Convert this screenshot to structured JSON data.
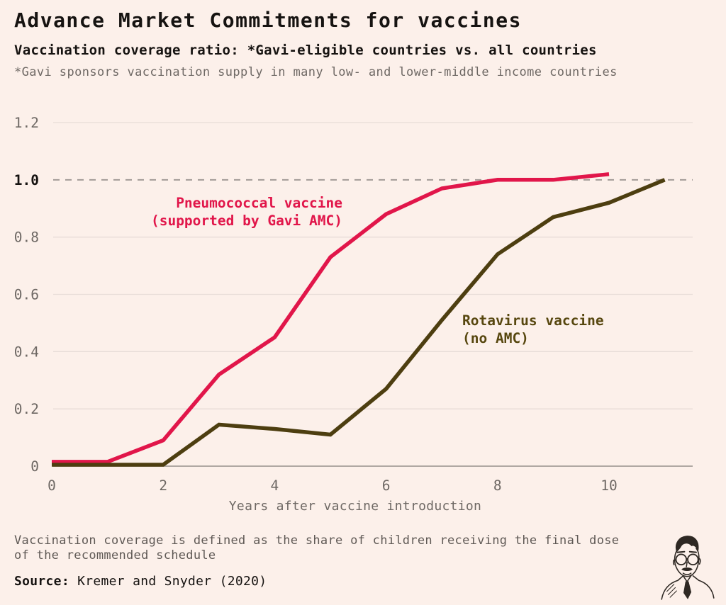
{
  "header": {
    "title": "Advance Market Commitments for vaccines",
    "subtitle": "Vaccination coverage ratio: *Gavi-eligible countries vs. all countries",
    "note": "*Gavi sponsors vaccination supply in many low- and lower-middle income countries"
  },
  "chart_data": {
    "type": "line",
    "title": "Advance Market Commitments for vaccines",
    "subtitle": "Vaccination coverage ratio: *Gavi-eligible countries vs. all countries",
    "xlabel": "Years after vaccine introduction",
    "ylabel": "Vaccination coverage ratio",
    "xlim": [
      0,
      11.5
    ],
    "ylim": [
      0,
      1.2
    ],
    "grid": "horizontal",
    "reference_line": {
      "value": 1.0,
      "style": "dashed"
    },
    "x_ticks": [
      0,
      2,
      4,
      6,
      8,
      10
    ],
    "y_ticks": [
      {
        "label": "0",
        "value": 0,
        "bold": false
      },
      {
        "label": "0.2",
        "value": 0.2,
        "bold": false
      },
      {
        "label": "0.4",
        "value": 0.4,
        "bold": false
      },
      {
        "label": "0.6",
        "value": 0.6,
        "bold": false
      },
      {
        "label": "0.8",
        "value": 0.8,
        "bold": false
      },
      {
        "label": "1.0",
        "value": 1.0,
        "bold": true
      },
      {
        "label": "1.2",
        "value": 1.2,
        "bold": false
      }
    ],
    "series": [
      {
        "name": "Pneumococcal vaccine (supported by Gavi AMC)",
        "color": "#e1164a",
        "x": [
          0,
          1,
          2,
          3,
          4,
          5,
          6,
          7,
          8,
          9,
          10
        ],
        "values": [
          0.015,
          0.015,
          0.09,
          0.32,
          0.45,
          0.73,
          0.88,
          0.97,
          1.0,
          1.0,
          1.02
        ]
      },
      {
        "name": "Rotavirus vaccine (no AMC)",
        "color": "#4d3e10",
        "x": [
          0,
          1,
          2,
          3,
          4,
          5,
          6,
          7,
          8,
          9,
          10,
          11
        ],
        "values": [
          0.005,
          0.005,
          0.005,
          0.145,
          0.13,
          0.11,
          0.27,
          0.51,
          0.74,
          0.87,
          0.92,
          1.0
        ]
      }
    ],
    "annotations": [
      {
        "line1": "Pneumococcal vaccine",
        "line2": "(supported by Gavi AMC)",
        "color": "#e1164a"
      },
      {
        "line1": "Rotavirus vaccine",
        "line2": "(no AMC)",
        "color": "#57470f"
      }
    ]
  },
  "footer": {
    "footnote_line1": "Vaccination coverage is defined as the share of children receiving the final dose",
    "footnote_line2": "of the recommended schedule",
    "source_label": "Source:",
    "source_text": " Kremer and Snyder (2020)"
  },
  "colors": {
    "background": "#fcf0ea",
    "grid": "#e7dcd7",
    "dashed_reference": "#a29b97",
    "axis": "#968f8b",
    "tick_text": "#6e6864",
    "bold_tick_text": "#161311"
  }
}
